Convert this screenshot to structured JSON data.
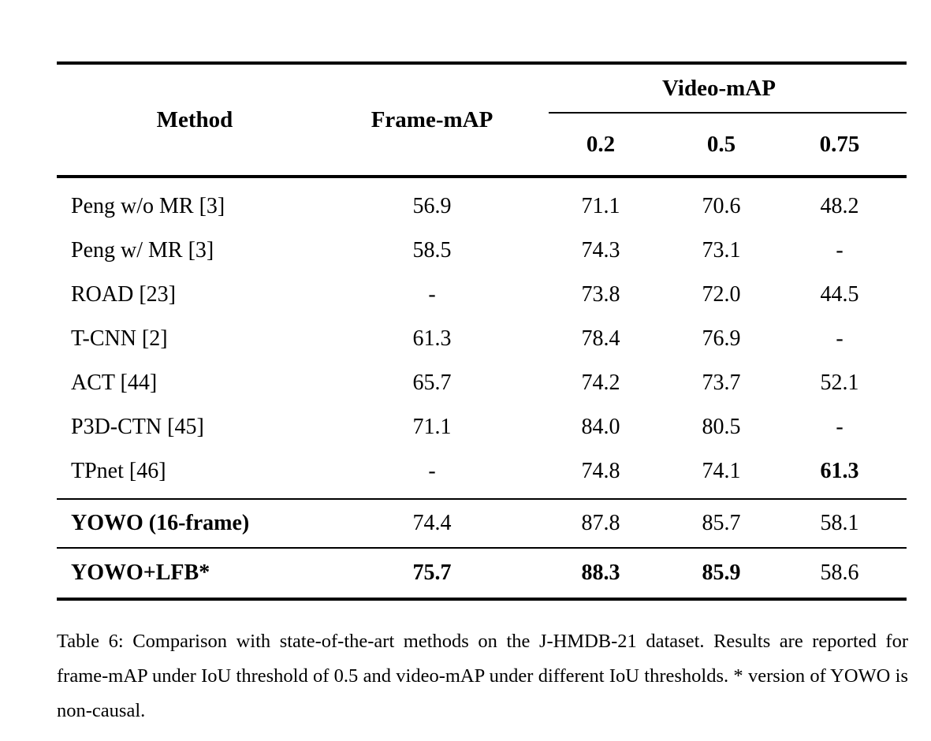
{
  "page": {
    "background": "#ffffff",
    "text_color": "#000000"
  },
  "table": {
    "header": {
      "method_label": "Method",
      "frame_map_label": "Frame-mAP",
      "video_map_label": "Video-mAP",
      "iou_thresholds": [
        "0.2",
        "0.5",
        "0.75"
      ]
    },
    "groups": [
      {
        "name": "state-of-the-art",
        "rows": [
          {
            "method": "Peng w/o MR [3]",
            "bold_method": false,
            "values": [
              "56.9",
              "71.1",
              "70.6",
              "48.2"
            ],
            "bold_values": [
              false,
              false,
              false,
              false
            ]
          },
          {
            "method": "Peng w/ MR [3]",
            "bold_method": false,
            "values": [
              "58.5",
              "74.3",
              "73.1",
              "-"
            ],
            "bold_values": [
              false,
              false,
              false,
              false
            ]
          },
          {
            "method": "ROAD [23]",
            "bold_method": false,
            "values": [
              "-",
              "73.8",
              "72.0",
              "44.5"
            ],
            "bold_values": [
              false,
              false,
              false,
              false
            ]
          },
          {
            "method": "T-CNN [2]",
            "bold_method": false,
            "values": [
              "61.3",
              "78.4",
              "76.9",
              "-"
            ],
            "bold_values": [
              false,
              false,
              false,
              false
            ]
          },
          {
            "method": "ACT [44]",
            "bold_method": false,
            "values": [
              "65.7",
              "74.2",
              "73.7",
              "52.1"
            ],
            "bold_values": [
              false,
              false,
              false,
              false
            ]
          },
          {
            "method": "P3D-CTN [45]",
            "bold_method": false,
            "values": [
              "71.1",
              "84.0",
              "80.5",
              "-"
            ],
            "bold_values": [
              false,
              false,
              false,
              false
            ]
          },
          {
            "method": "TPnet [46]",
            "bold_method": false,
            "values": [
              "-",
              "74.8",
              "74.1",
              "61.3"
            ],
            "bold_values": [
              false,
              false,
              false,
              true
            ]
          }
        ]
      },
      {
        "name": "yowo",
        "rows": [
          {
            "method": "YOWO (16-frame)",
            "bold_method": true,
            "values": [
              "74.4",
              "87.8",
              "85.7",
              "58.1"
            ],
            "bold_values": [
              false,
              false,
              false,
              false
            ]
          }
        ]
      },
      {
        "name": "yowo-lfb",
        "rows": [
          {
            "method": "YOWO+LFB*",
            "bold_method": true,
            "values": [
              "75.7",
              "88.3",
              "85.9",
              "58.6"
            ],
            "bold_values": [
              true,
              true,
              true,
              false
            ]
          }
        ]
      }
    ]
  },
  "caption": {
    "label": "Table 6:",
    "body": "Comparison with state-of-the-art methods on the J-HMDB-21 dataset.  Results are reported for frame-mAP under IoU threshold of 0.5 and video-mAP under different IoU thresholds. * version of YOWO is non-causal."
  }
}
